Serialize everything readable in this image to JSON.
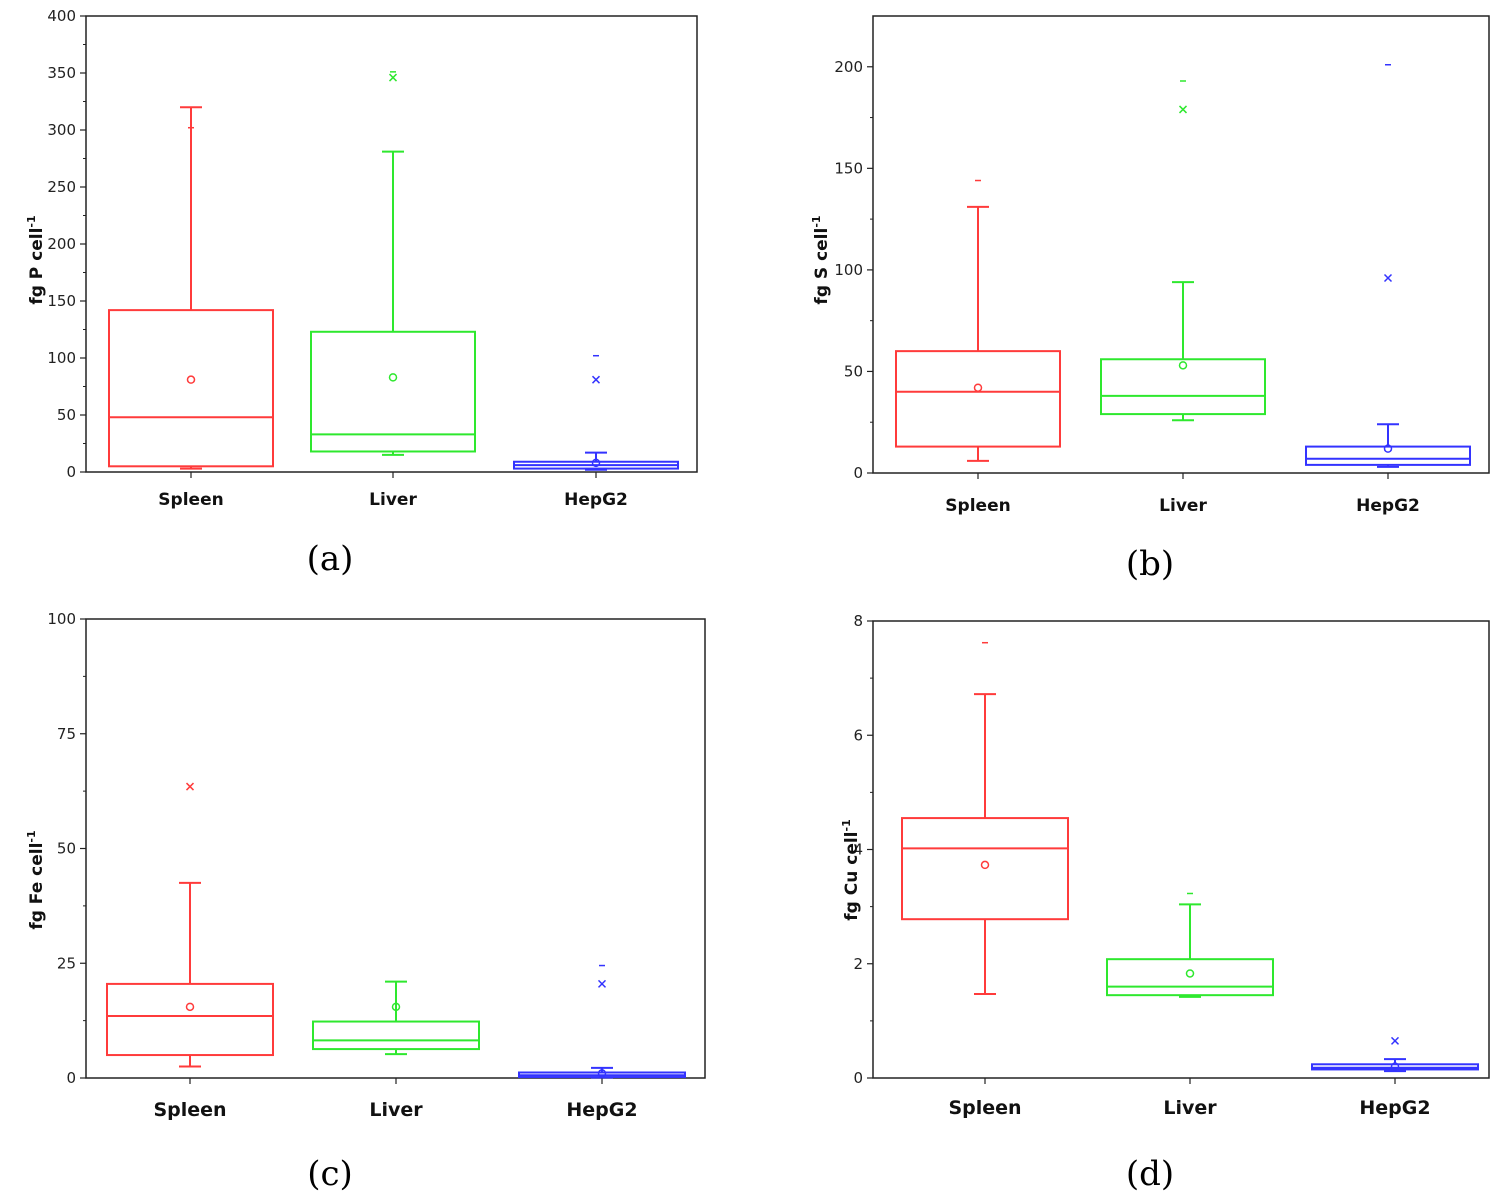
{
  "chart_data": [
    {
      "type": "box",
      "caption": "(a)",
      "ylabel": "fg P cell",
      "ylabel_sup": "-1",
      "ylim": [
        0,
        400
      ],
      "yticks": [
        0,
        50,
        100,
        150,
        200,
        250,
        300,
        350,
        400
      ],
      "categories": [
        "Spleen",
        "Liver",
        "HepG2"
      ],
      "colors": [
        "#ff3b3b",
        "#2ee82e",
        "#3333ff"
      ],
      "boxes": [
        {
          "q1": 5,
          "median": 48,
          "q3": 142,
          "whisker_low": 3,
          "whisker_high": 320,
          "mean": 81,
          "outliers_x": [],
          "outliers_dash": [
            302
          ]
        },
        {
          "q1": 18,
          "median": 33,
          "q3": 123,
          "whisker_low": 15,
          "whisker_high": 281,
          "mean": 83,
          "outliers_x": [
            346
          ],
          "outliers_dash": [
            351
          ]
        },
        {
          "q1": 3,
          "median": 6,
          "q3": 9,
          "whisker_low": 2,
          "whisker_high": 17,
          "mean": 8,
          "outliers_x": [
            81
          ],
          "outliers_dash": [
            102
          ]
        }
      ]
    },
    {
      "type": "box",
      "caption": "(b)",
      "ylabel": "fg S cell",
      "ylabel_sup": "-1",
      "ylim": [
        0,
        225
      ],
      "yticks": [
        0,
        50,
        100,
        150,
        200
      ],
      "categories": [
        "Spleen",
        "Liver",
        "HepG2"
      ],
      "colors": [
        "#ff3b3b",
        "#2ee82e",
        "#3333ff"
      ],
      "boxes": [
        {
          "q1": 13,
          "median": 40,
          "q3": 60,
          "whisker_low": 6,
          "whisker_high": 131,
          "mean": 42,
          "outliers_x": [],
          "outliers_dash": [
            144
          ]
        },
        {
          "q1": 29,
          "median": 38,
          "q3": 56,
          "whisker_low": 26,
          "whisker_high": 94,
          "mean": 53,
          "outliers_x": [
            179
          ],
          "outliers_dash": [
            193
          ]
        },
        {
          "q1": 4,
          "median": 7,
          "q3": 13,
          "whisker_low": 3,
          "whisker_high": 24,
          "mean": 12,
          "outliers_x": [
            96
          ],
          "outliers_dash": [
            201
          ]
        }
      ]
    },
    {
      "type": "box",
      "caption": "(c)",
      "ylabel": "fg Fe cell",
      "ylabel_sup": "-1",
      "ylim": [
        0,
        100
      ],
      "yticks": [
        0,
        25,
        50,
        75,
        100
      ],
      "categories": [
        "Spleen",
        "Liver",
        "HepG2"
      ],
      "colors": [
        "#ff3b3b",
        "#2ee82e",
        "#3333ff"
      ],
      "boxes": [
        {
          "q1": 5,
          "median": 13.5,
          "q3": 20.5,
          "whisker_low": 2.5,
          "whisker_high": 42.5,
          "mean": 15.5,
          "outliers_x": [
            63.5
          ],
          "outliers_dash": []
        },
        {
          "q1": 6.3,
          "median": 8.2,
          "q3": 12.3,
          "whisker_low": 5.2,
          "whisker_high": 21,
          "mean": 15.5,
          "outliers_x": [],
          "outliers_dash": []
        },
        {
          "q1": 0.2,
          "median": 0.6,
          "q3": 1.2,
          "whisker_low": 0.1,
          "whisker_high": 2.2,
          "mean": 1.0,
          "outliers_x": [
            20.5
          ],
          "outliers_dash": [
            24.5
          ]
        }
      ]
    },
    {
      "type": "box",
      "caption": "(d)",
      "ylabel": "fg Cu cell",
      "ylabel_sup": "-1",
      "ylim": [
        0,
        8
      ],
      "yticks": [
        0,
        2,
        4,
        6,
        8
      ],
      "categories": [
        "Spleen",
        "Liver",
        "HepG2"
      ],
      "colors": [
        "#ff3b3b",
        "#2ee82e",
        "#3333ff"
      ],
      "boxes": [
        {
          "q1": 2.78,
          "median": 4.02,
          "q3": 4.55,
          "whisker_low": 1.47,
          "whisker_high": 6.72,
          "mean": 3.73,
          "outliers_x": [],
          "outliers_dash": [
            7.62
          ]
        },
        {
          "q1": 1.45,
          "median": 1.6,
          "q3": 2.08,
          "whisker_low": 1.42,
          "whisker_high": 3.04,
          "mean": 1.83,
          "outliers_x": [],
          "outliers_dash": [
            3.23
          ]
        },
        {
          "q1": 0.15,
          "median": 0.18,
          "q3": 0.24,
          "whisker_low": 0.12,
          "whisker_high": 0.33,
          "mean": 0.2,
          "outliers_x": [
            0.65
          ],
          "outliers_dash": []
        }
      ]
    }
  ]
}
